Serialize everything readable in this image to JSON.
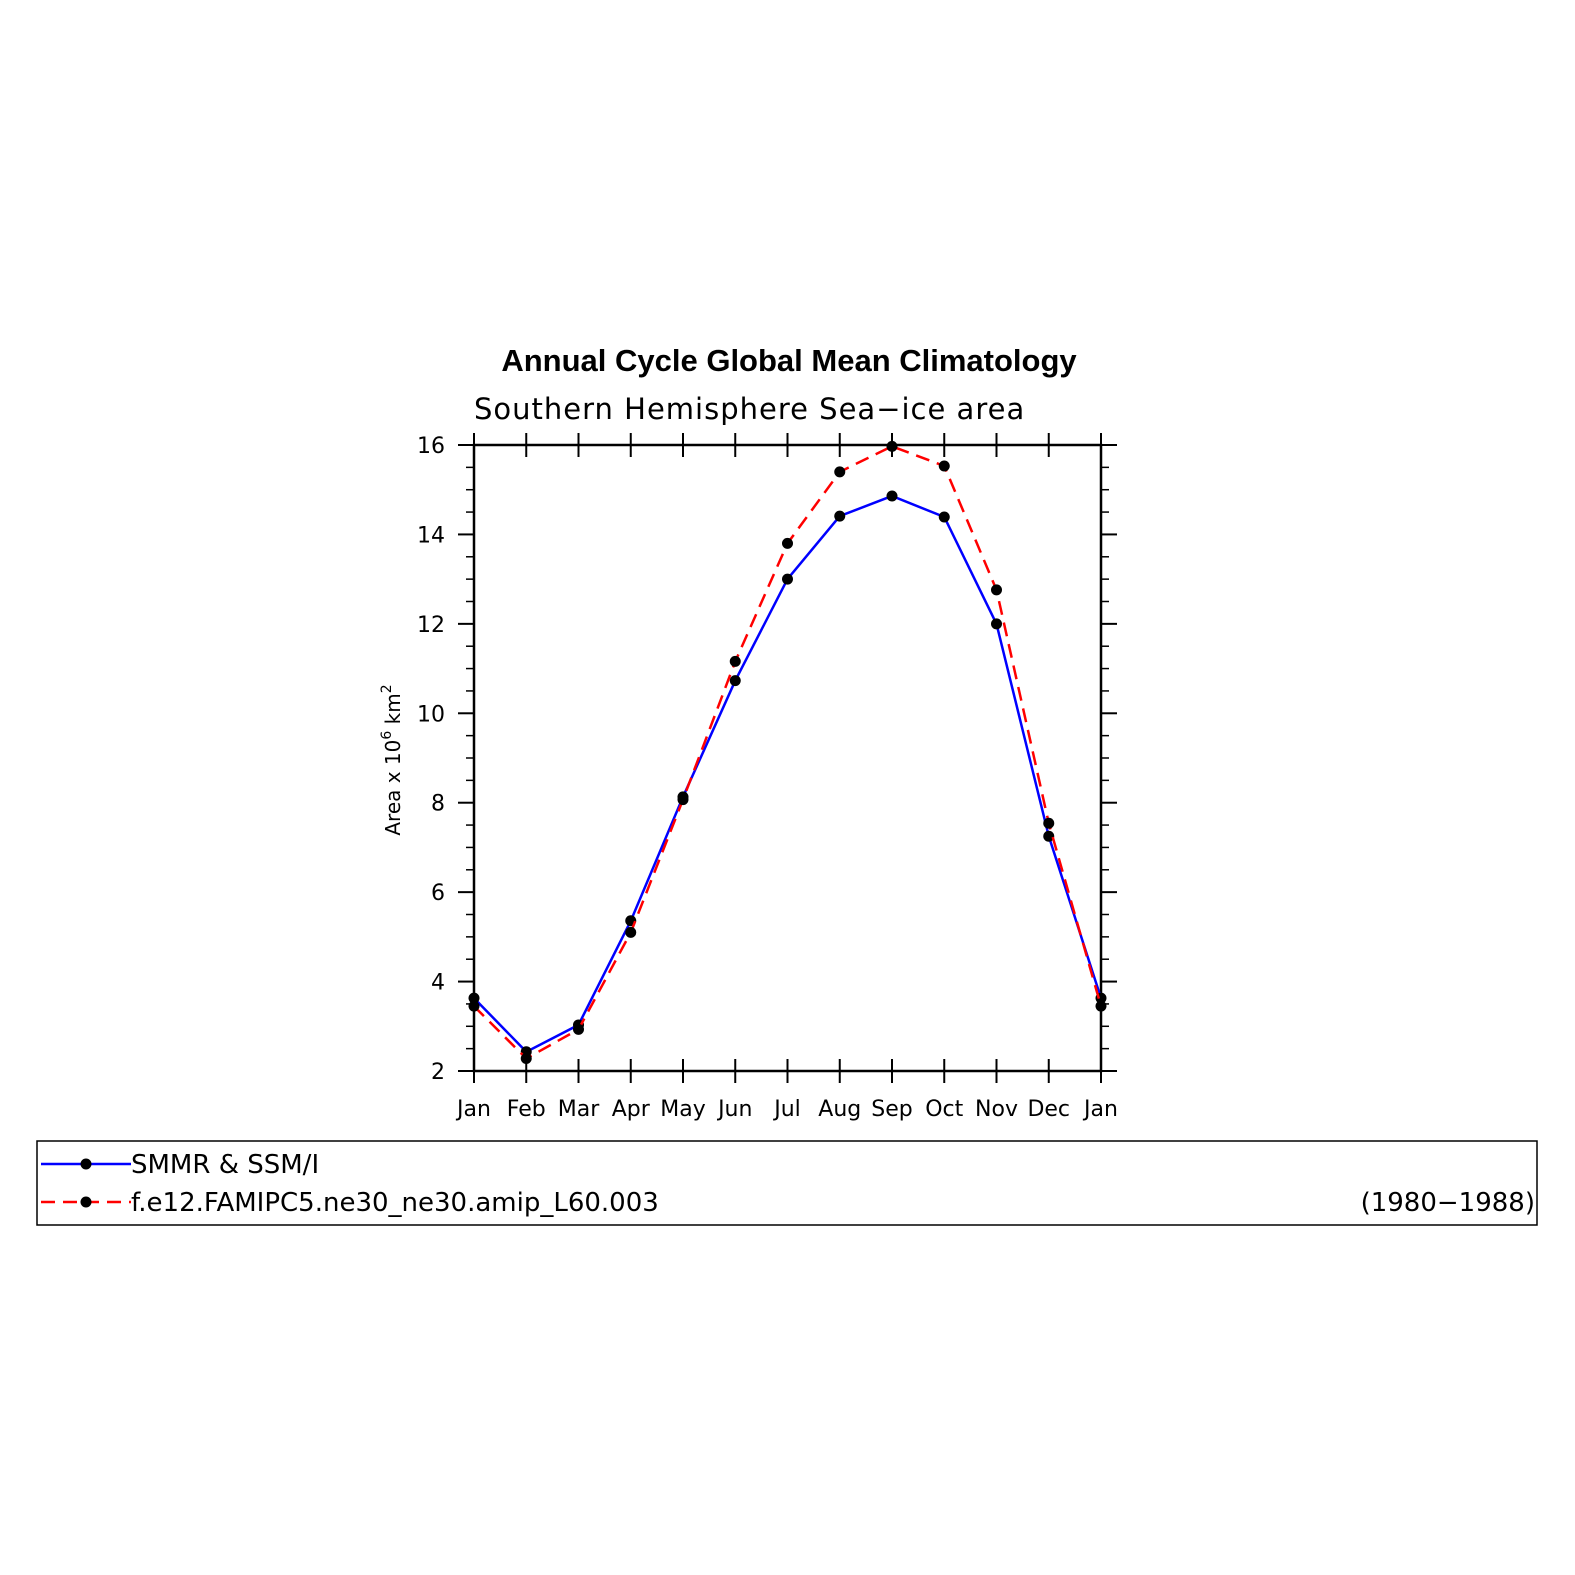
{
  "chart_data": {
    "type": "line",
    "title": "Annual Cycle Global Mean Climatology",
    "subtitle": "Southern Hemisphere Sea−ice area",
    "ylabel": {
      "base": "Area x 10",
      "exp": "6",
      "unit": " km",
      "unit_exp": "2"
    },
    "xlabel": "",
    "categories": [
      "Jan",
      "Feb",
      "Mar",
      "Apr",
      "May",
      "Jun",
      "Jul",
      "Aug",
      "Sep",
      "Oct",
      "Nov",
      "Dec",
      "Jan"
    ],
    "ylim": [
      2,
      16
    ],
    "yticks": [
      2,
      4,
      6,
      8,
      10,
      12,
      14,
      16
    ],
    "series": [
      {
        "name": "SMMR & SSM/I",
        "color": "#0000ff",
        "dash": "solid",
        "values": [
          3.63,
          2.43,
          3.03,
          5.36,
          8.13,
          10.73,
          13.0,
          14.41,
          14.86,
          14.39,
          12.0,
          7.25,
          3.63
        ]
      },
      {
        "name": "f.e12.FAMIPC5.ne30_ne30.amip_L60.003",
        "color": "#ff0000",
        "dash": "dashed",
        "values": [
          3.45,
          2.28,
          2.93,
          5.1,
          8.07,
          11.16,
          13.8,
          15.4,
          15.97,
          15.53,
          12.76,
          7.54,
          3.45
        ]
      }
    ],
    "legend": {
      "placement": "bottom",
      "period": "(1980−1988)"
    },
    "grid": false
  }
}
